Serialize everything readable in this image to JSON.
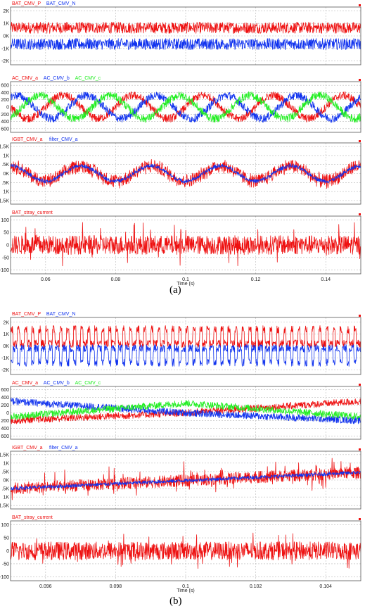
{
  "colors": {
    "red": "#ee1111",
    "blue": "#1133ee",
    "green": "#22ee22",
    "grid": "#b8b8b8",
    "frame": "#555555"
  },
  "figures": [
    {
      "caption": "(a)",
      "xaxis": {
        "label": "Time (s)",
        "range": [
          0.05,
          0.15
        ],
        "ticks": [
          "0.06",
          "0.08",
          "0.1",
          "0.12",
          "0.14"
        ],
        "tick_values": [
          0.06,
          0.08,
          0.1,
          0.12,
          0.14
        ]
      },
      "panels": [
        {
          "legend": [
            "BAT_CMV_P",
            "BAT_CMV_N"
          ],
          "yticks": [
            "2K",
            "1K",
            "0K",
            "-1K",
            "-2K"
          ],
          "ytick_values": [
            2000,
            1000,
            0,
            -1000,
            -2000
          ],
          "ylim": [
            -2300,
            2300
          ]
        },
        {
          "legend": [
            "AC_CMV_a",
            "AC_CMV_b",
            "AC_CMV_c"
          ],
          "yticks": [
            "600",
            "400",
            "200",
            "0",
            "200",
            "400",
            "600"
          ],
          "ytick_values": [
            600,
            400,
            200,
            0,
            -200,
            -400,
            -600
          ],
          "ylim": [
            -700,
            700
          ]
        },
        {
          "legend": [
            "IGBT_CMV_a",
            "filter_CMV_a"
          ],
          "yticks": [
            "1.5K",
            "1K",
            ".5K",
            "0K",
            ".5K",
            "1K",
            "1.5K"
          ],
          "ytick_values": [
            1500,
            1000,
            500,
            0,
            -500,
            -1000,
            -1500
          ],
          "ylim": [
            -1700,
            1700
          ]
        },
        {
          "legend": [
            "BAT_stray_current"
          ],
          "yticks": [
            "100",
            "50",
            "0",
            "-50",
            "-100"
          ],
          "ytick_values": [
            100,
            50,
            0,
            -50,
            -100
          ],
          "ylim": [
            -115,
            115
          ]
        }
      ]
    },
    {
      "caption": "(b)",
      "xaxis": {
        "label": "Time (s)",
        "range": [
          0.095,
          0.105
        ],
        "ticks": [
          "0.096",
          "0.098",
          "0.1",
          "0.102",
          "0.104"
        ],
        "tick_values": [
          0.096,
          0.098,
          0.1,
          0.102,
          0.104
        ]
      },
      "panels": [
        {
          "legend": [
            "BAT_CMV_P",
            "BAT_CMV_N"
          ],
          "yticks": [
            "2K",
            "1K",
            "0K",
            "-1K",
            "-2K"
          ],
          "ytick_values": [
            2000,
            1000,
            0,
            -1000,
            -2000
          ],
          "ylim": [
            -2400,
            2400
          ]
        },
        {
          "legend": [
            "AC_CMV_a",
            "AC_CMV_b",
            "AC_CMV_c"
          ],
          "yticks": [
            "600",
            "400",
            "200",
            "0",
            "200",
            "400",
            "600"
          ],
          "ytick_values": [
            600,
            400,
            200,
            0,
            -200,
            -400,
            -600
          ],
          "ylim": [
            -680,
            680
          ]
        },
        {
          "legend": [
            "IGBT_CMV_a",
            "filter_CMV_a"
          ],
          "yticks": [
            "1.5K",
            "1K",
            ".5K",
            "0K",
            ".5K",
            "1K",
            "1.5K"
          ],
          "ytick_values": [
            1500,
            1000,
            500,
            0,
            -500,
            -1000,
            -1500
          ],
          "ylim": [
            -1700,
            1700
          ]
        },
        {
          "legend": [
            "BAT_stray_current"
          ],
          "yticks": [
            "100",
            "50",
            "0",
            "-50",
            "-100"
          ],
          "ytick_values": [
            100,
            50,
            0,
            -50,
            -100
          ],
          "ylim": [
            -115,
            115
          ]
        }
      ]
    }
  ],
  "chart_data": [
    {
      "type": "line",
      "x_range": [
        0.05,
        0.15
      ],
      "ylim": [
        -2300,
        2300
      ],
      "series": [
        {
          "name": "BAT_CMV_P",
          "values": [
            {
              "center": 650,
              "band": [
                200,
                1100
              ]
            }
          ]
        },
        {
          "name": "BAT_CMV_N",
          "values": [
            {
              "center": -650,
              "band": [
                -1100,
                -200
              ]
            }
          ]
        }
      ]
    },
    {
      "type": "line",
      "x_range": [
        0.05,
        0.15
      ],
      "ylim": [
        -700,
        700
      ],
      "series": [
        {
          "name": "AC_CMV_a",
          "amplitude": 320,
          "frequency_hz": 50,
          "phase_deg": 0,
          "ripple": 110
        },
        {
          "name": "AC_CMV_b",
          "amplitude": 320,
          "frequency_hz": 50,
          "phase_deg": -120,
          "ripple": 110
        },
        {
          "name": "AC_CMV_c",
          "amplitude": 320,
          "frequency_hz": 50,
          "phase_deg": 120,
          "ripple": 110
        }
      ]
    },
    {
      "type": "line",
      "x_range": [
        0.05,
        0.15
      ],
      "ylim": [
        -1700,
        1700
      ],
      "series": [
        {
          "name": "IGBT_CMV_a",
          "amplitude": 420,
          "frequency_hz": 50,
          "offset": 0,
          "ripple": 450
        },
        {
          "name": "filter_CMV_a",
          "amplitude": 420,
          "frequency_hz": 50,
          "offset": 0,
          "ripple": 130
        }
      ]
    },
    {
      "type": "line",
      "x_range": [
        0.05,
        0.15
      ],
      "ylim": [
        -115,
        115
      ],
      "series": [
        {
          "name": "BAT_stray_current",
          "center": 0,
          "band": [
            -40,
            40
          ],
          "peaks": [
            -95,
            95
          ]
        }
      ]
    },
    {
      "type": "line",
      "x_range": [
        0.095,
        0.105
      ],
      "ylim": [
        -2400,
        2400
      ],
      "series": [
        {
          "name": "BAT_CMV_P",
          "center": 650,
          "band": [
            -100,
            1700
          ],
          "switching_period_s": 0.0002
        },
        {
          "name": "BAT_CMV_N",
          "center": -650,
          "band": [
            -1700,
            100
          ],
          "switching_period_s": 0.0002
        }
      ]
    },
    {
      "type": "line",
      "x_range": [
        0.095,
        0.105
      ],
      "ylim": [
        -680,
        680
      ],
      "series": [
        {
          "name": "AC_CMV_a",
          "values_at": {
            "0.095": -200,
            "0.1": 0,
            "0.105": 300
          }
        },
        {
          "name": "AC_CMV_b",
          "values_at": {
            "0.095": 300,
            "0.1": 0,
            "0.105": -200
          }
        },
        {
          "name": "AC_CMV_c",
          "values_at": {
            "0.095": -100,
            "0.1": 250,
            "0.105": -100
          }
        }
      ]
    },
    {
      "type": "line",
      "x_range": [
        0.095,
        0.105
      ],
      "ylim": [
        -1700,
        1700
      ],
      "series": [
        {
          "name": "IGBT_CMV_a",
          "values_at": {
            "0.095": -500,
            "0.105": 450
          },
          "ripple": 500
        },
        {
          "name": "filter_CMV_a",
          "values_at": {
            "0.095": -500,
            "0.105": 450
          },
          "ripple": 150
        }
      ]
    },
    {
      "type": "line",
      "x_range": [
        0.095,
        0.105
      ],
      "ylim": [
        -115,
        115
      ],
      "series": [
        {
          "name": "BAT_stray_current",
          "center": 0,
          "band": [
            -40,
            40
          ],
          "peaks": [
            -70,
            70
          ]
        }
      ]
    }
  ]
}
